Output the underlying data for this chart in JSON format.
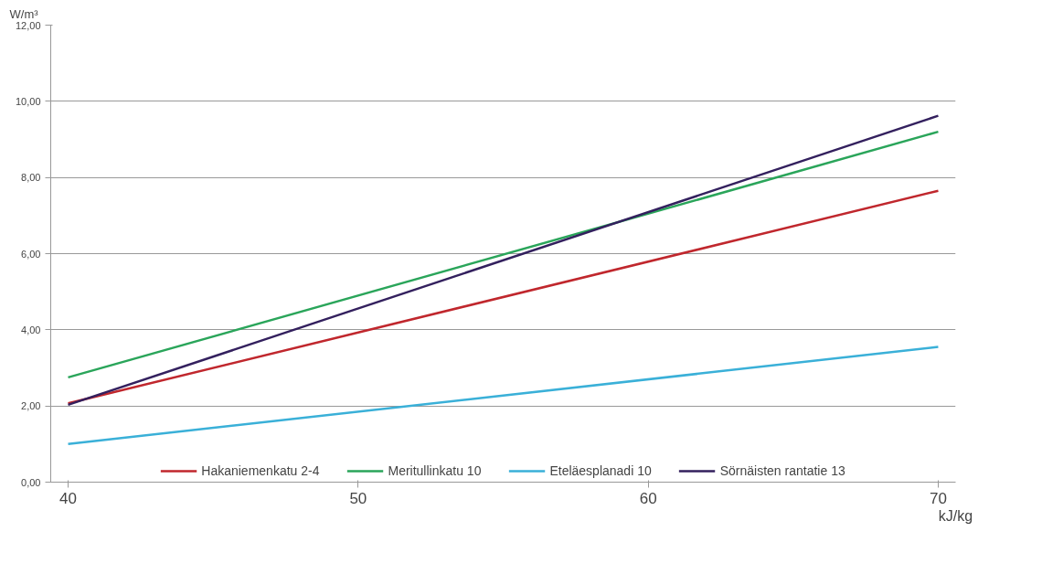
{
  "chart_data": {
    "type": "line",
    "ylabel": "W/m³",
    "xlabel": "kJ/kg",
    "x": [
      40,
      70
    ],
    "series": [
      {
        "name": "Hakaniemenkatu 2-4",
        "color": "#c0272d",
        "values": [
          2.07,
          7.65
        ]
      },
      {
        "name": "Meritullinkatu 10",
        "color": "#2aa55a",
        "values": [
          2.75,
          9.2
        ]
      },
      {
        "name": "Eteläesplanadi 10",
        "color": "#3ab0d8",
        "values": [
          1.0,
          3.55
        ]
      },
      {
        "name": "Sörnäisten rantatie 13",
        "color": "#33205e",
        "values": [
          2.03,
          9.62
        ]
      }
    ],
    "xlim": [
      39.4,
      70.6
    ],
    "xticks": [
      40,
      50,
      60,
      70
    ],
    "ylim": [
      0,
      12
    ],
    "yticks": [
      {
        "value": 0,
        "label": "0,00"
      },
      {
        "value": 2,
        "label": "2,00"
      },
      {
        "value": 4,
        "label": "4,00"
      },
      {
        "value": 6,
        "label": "6,00"
      },
      {
        "value": 8,
        "label": "8,00"
      },
      {
        "value": 10,
        "label": "10,00"
      },
      {
        "value": 12,
        "label": "12,00"
      }
    ],
    "grid": "y",
    "legend": "bottom",
    "line_style": "solid"
  }
}
